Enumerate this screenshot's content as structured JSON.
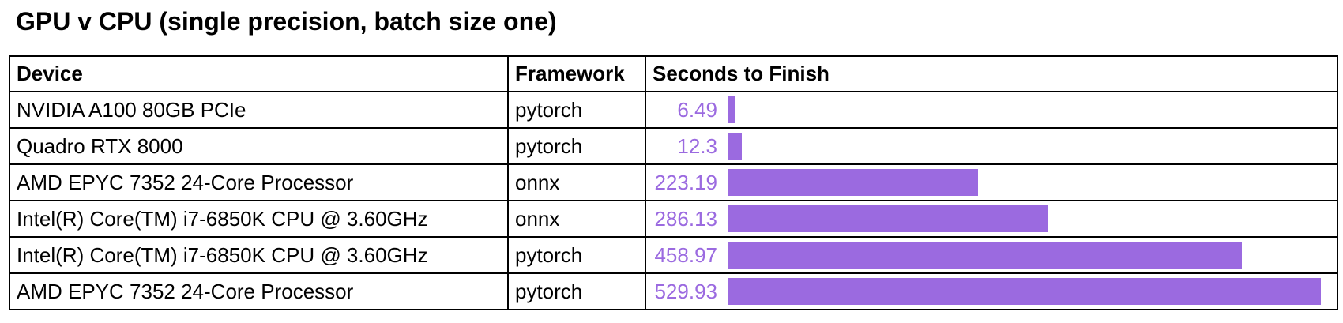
{
  "title": "GPU v CPU (single precision, batch size one)",
  "chart_data": {
    "type": "table",
    "title": "GPU v CPU (single precision, batch size one)",
    "columns": [
      "Device",
      "Framework",
      "Seconds to Finish"
    ],
    "rows": [
      {
        "device": "NVIDIA A100 80GB PCIe",
        "framework": "pytorch",
        "seconds": 6.49,
        "seconds_label": "6.49"
      },
      {
        "device": "Quadro RTX 8000",
        "framework": "pytorch",
        "seconds": 12.3,
        "seconds_label": "12.3"
      },
      {
        "device": "AMD EPYC 7352 24-Core Processor",
        "framework": "onnx",
        "seconds": 223.19,
        "seconds_label": "223.19"
      },
      {
        "device": "Intel(R) Core(TM) i7-6850K CPU @ 3.60GHz",
        "framework": "onnx",
        "seconds": 286.13,
        "seconds_label": "286.13"
      },
      {
        "device": "Intel(R) Core(TM) i7-6850K CPU @ 3.60GHz",
        "framework": "pytorch",
        "seconds": 458.97,
        "seconds_label": "458.97"
      },
      {
        "device": "AMD EPYC 7352 24-Core Processor",
        "framework": "pytorch",
        "seconds": 529.93,
        "seconds_label": "529.93"
      }
    ],
    "bar_color": "#9b6ae0",
    "xlim": [
      0,
      529.93
    ]
  }
}
